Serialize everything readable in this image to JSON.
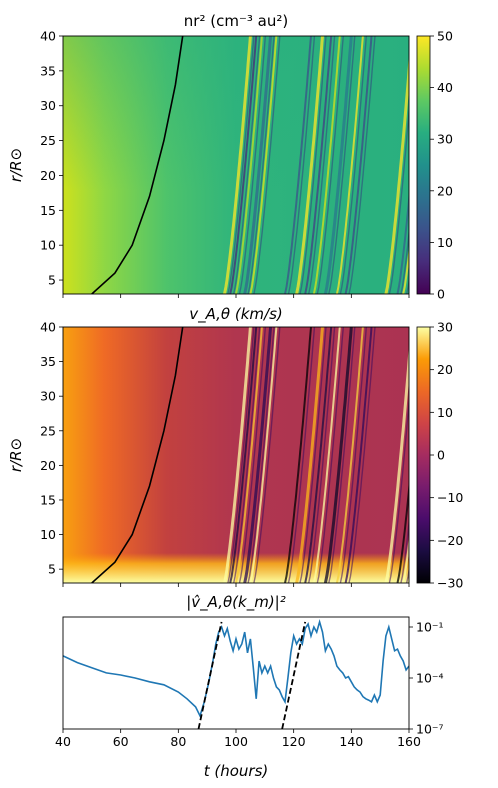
{
  "chart_data": [
    {
      "type": "heatmap",
      "title": "nr² (cm⁻³ au²)",
      "ylabel": "r/R⊙",
      "xlim": [
        40,
        160
      ],
      "ylim": [
        3,
        40
      ],
      "yticks": [
        5,
        10,
        15,
        20,
        25,
        30,
        35,
        40
      ],
      "colorbar": {
        "cmap": "viridis",
        "range": [
          0,
          50
        ],
        "ticks": [
          0,
          10,
          20,
          30,
          40,
          50
        ]
      },
      "background_trend": "high (~45) at early times and low r, decreasing to ~30 by 80 h",
      "streaks_start_hours": [
        96,
        98,
        100,
        103,
        105,
        117,
        121,
        124,
        127,
        131,
        135,
        138,
        152,
        156,
        158
      ],
      "reference_curve": {
        "name": "trajectory",
        "points": [
          [
            50,
            3
          ],
          [
            58,
            6
          ],
          [
            64,
            10
          ],
          [
            70,
            17
          ],
          [
            75,
            25
          ],
          [
            79,
            33
          ],
          [
            81.5,
            40
          ]
        ]
      }
    },
    {
      "type": "heatmap",
      "title": "v_A,θ (km/s)",
      "ylabel": "r/R⊙",
      "xlim": [
        40,
        160
      ],
      "ylim": [
        3,
        40
      ],
      "yticks": [
        5,
        10,
        15,
        20,
        25,
        30,
        35,
        40
      ],
      "colorbar": {
        "cmap": "inferno",
        "range": [
          -30,
          30
        ],
        "ticks": [
          -30,
          -20,
          -10,
          0,
          10,
          20,
          30
        ]
      },
      "background_trend": "orange (~15) at early times, ~0 elsewhere, bright (~30) layer below r≈5",
      "streaks_start_hours": [
        96,
        98,
        100,
        103,
        105,
        117,
        121,
        124,
        127,
        131,
        135,
        138,
        152,
        156,
        158
      ],
      "reference_curve": {
        "name": "trajectory",
        "points": [
          [
            50,
            3
          ],
          [
            58,
            6
          ],
          [
            64,
            10
          ],
          [
            70,
            17
          ],
          [
            75,
            25
          ],
          [
            79,
            33
          ],
          [
            81.5,
            40
          ]
        ]
      }
    },
    {
      "type": "line",
      "title": "|v̂_A,θ(k_m)|²",
      "xlabel": "t (hours)",
      "xlim": [
        40,
        160
      ],
      "xticks": [
        40,
        60,
        80,
        100,
        120,
        140,
        160
      ],
      "yscale": "log",
      "ylim": [
        1e-07,
        0.1
      ],
      "yticks": [
        1e-07,
        0.0001,
        0.1
      ],
      "ytick_labels": [
        "10⁻⁷",
        "10⁻⁴",
        "10⁻¹"
      ],
      "series": [
        {
          "x": [
            40,
            45,
            50,
            55,
            60,
            65,
            70,
            75,
            80,
            83,
            86,
            87.5,
            89,
            90.5,
            92,
            93,
            94,
            95,
            96,
            97,
            98,
            99,
            100,
            101,
            102,
            103,
            104,
            105,
            106,
            107,
            108,
            109,
            110,
            111,
            112,
            113,
            114,
            115,
            116,
            117,
            118,
            119,
            120,
            121,
            122,
            123,
            124,
            125,
            126,
            127,
            128,
            129,
            130,
            131,
            132,
            133,
            134,
            135,
            136,
            137,
            138,
            139,
            140,
            141,
            142,
            143,
            144,
            145,
            146,
            147,
            148,
            149,
            150,
            151,
            152,
            153,
            154,
            155,
            156,
            157,
            158,
            159,
            160
          ],
          "y": [
            0.002,
            0.0008,
            0.0004,
            0.0002,
            0.00015,
            0.0001,
            6e-05,
            4e-05,
            1.5e-05,
            6e-06,
            2e-06,
            6e-07,
            4e-06,
            5e-05,
            0.001,
            0.01,
            0.05,
            0.1,
            0.03,
            0.08,
            0.015,
            0.004,
            0.02,
            0.005,
            0.01,
            0.05,
            0.003,
            0.02,
            0.0004,
            6e-06,
            0.001,
            0.0002,
            0.0005,
            0.0002,
            0.0005,
            0.0001,
            3e-05,
            2e-05,
            8e-06,
            4e-06,
            0.0001,
            0.003,
            0.03,
            0.01,
            0.02,
            0.01,
            0.08,
            0.15,
            0.03,
            0.1,
            0.05,
            0.2,
            0.05,
            0.004,
            0.01,
            0.005,
            0.002,
            0.0005,
            0.0003,
            0.0002,
            0.0001,
            0.00012,
            6e-05,
            3e-05,
            2e-05,
            1.5e-05,
            8e-06,
            6e-06,
            5e-06,
            4e-06,
            1e-05,
            4e-06,
            1e-05,
            0.001,
            0.03,
            0.1,
            0.02,
            0.004,
            0.005,
            0.002,
            0.001,
            0.0003,
            0.0005
          ]
        }
      ],
      "dashed_lines": [
        {
          "points": [
            [
              87,
              1e-07
            ],
            [
              95,
              0.2
            ]
          ]
        },
        {
          "points": [
            [
              116,
              1e-07
            ],
            [
              124,
              0.2
            ]
          ]
        }
      ]
    }
  ]
}
